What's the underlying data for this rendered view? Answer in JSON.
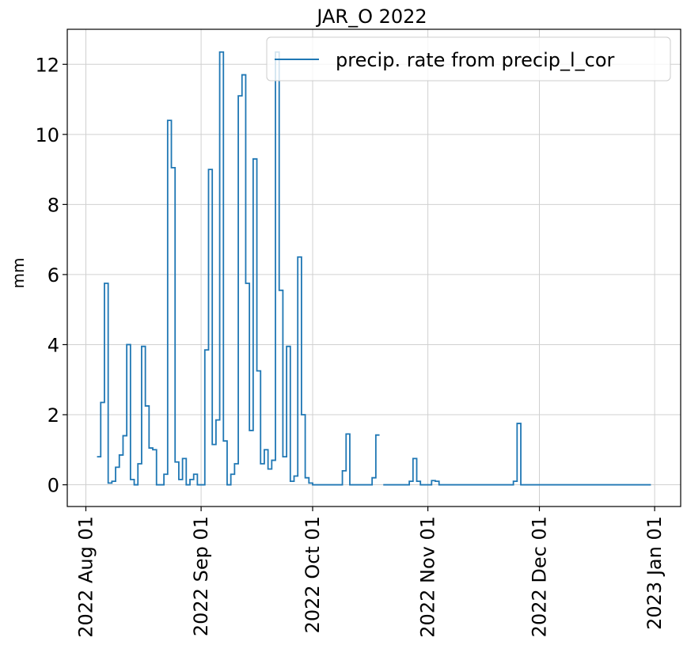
{
  "chart_data": {
    "type": "line",
    "step": true,
    "title": "JAR_O 2022",
    "ylabel": "mm",
    "ylim": [
      -0.62,
      13.0
    ],
    "xlim": [
      "2022-07-27",
      "2023-01-08"
    ],
    "yticks": [
      0,
      2,
      4,
      6,
      8,
      10,
      12
    ],
    "xticks": [
      {
        "date": "2022-08-01",
        "label": "2022 Aug 01"
      },
      {
        "date": "2022-09-01",
        "label": "2022 Sep 01"
      },
      {
        "date": "2022-10-01",
        "label": "2022 Oct 01"
      },
      {
        "date": "2022-11-01",
        "label": "2022 Nov 01"
      },
      {
        "date": "2022-12-01",
        "label": "2022 Dec 01"
      },
      {
        "date": "2023-01-01",
        "label": "2023 Jan 01"
      }
    ],
    "grid": true,
    "legend_position": "top-right",
    "series": [
      {
        "name": "precip. rate from precip_l_cor",
        "color": "#1f77b4",
        "segments": [
          [
            [
              "2022-08-04",
              0.8
            ],
            [
              "2022-08-05",
              2.35
            ],
            [
              "2022-08-06",
              5.75
            ],
            [
              "2022-08-07",
              0.05
            ],
            [
              "2022-08-08",
              0.1
            ],
            [
              "2022-08-09",
              0.5
            ],
            [
              "2022-08-10",
              0.85
            ],
            [
              "2022-08-11",
              1.4
            ],
            [
              "2022-08-12",
              4.0
            ],
            [
              "2022-08-13",
              0.15
            ],
            [
              "2022-08-14",
              0.0
            ],
            [
              "2022-08-15",
              0.6
            ],
            [
              "2022-08-16",
              3.95
            ],
            [
              "2022-08-17",
              2.25
            ],
            [
              "2022-08-18",
              1.05
            ],
            [
              "2022-08-19",
              1.0
            ],
            [
              "2022-08-20",
              0.0
            ],
            [
              "2022-08-21",
              0.0
            ],
            [
              "2022-08-22",
              0.3
            ],
            [
              "2022-08-23",
              10.4
            ],
            [
              "2022-08-24",
              9.05
            ],
            [
              "2022-08-25",
              0.65
            ],
            [
              "2022-08-26",
              0.15
            ],
            [
              "2022-08-27",
              0.75
            ],
            [
              "2022-08-28",
              0.0
            ],
            [
              "2022-08-29",
              0.15
            ],
            [
              "2022-08-30",
              0.3
            ],
            [
              "2022-08-31",
              0.0
            ],
            [
              "2022-09-01",
              0.0
            ],
            [
              "2022-09-02",
              3.85
            ],
            [
              "2022-09-03",
              9.0
            ],
            [
              "2022-09-04",
              1.15
            ],
            [
              "2022-09-05",
              1.85
            ],
            [
              "2022-09-06",
              12.35
            ],
            [
              "2022-09-07",
              1.25
            ],
            [
              "2022-09-08",
              0.0
            ],
            [
              "2022-09-09",
              0.3
            ],
            [
              "2022-09-10",
              0.6
            ],
            [
              "2022-09-11",
              11.1
            ],
            [
              "2022-09-12",
              11.7
            ],
            [
              "2022-09-13",
              5.75
            ],
            [
              "2022-09-14",
              1.55
            ],
            [
              "2022-09-15",
              9.3
            ],
            [
              "2022-09-16",
              3.25
            ],
            [
              "2022-09-17",
              0.6
            ],
            [
              "2022-09-18",
              1.0
            ],
            [
              "2022-09-19",
              0.45
            ],
            [
              "2022-09-20",
              0.7
            ],
            [
              "2022-09-21",
              12.35
            ],
            [
              "2022-09-22",
              5.55
            ],
            [
              "2022-09-23",
              0.8
            ],
            [
              "2022-09-24",
              3.95
            ],
            [
              "2022-09-25",
              0.1
            ],
            [
              "2022-09-26",
              0.25
            ],
            [
              "2022-09-27",
              6.5
            ],
            [
              "2022-09-28",
              2.0
            ],
            [
              "2022-09-29",
              0.2
            ],
            [
              "2022-09-30",
              0.05
            ],
            [
              "2022-10-01",
              0.0
            ],
            [
              "2022-10-02",
              0.0
            ],
            [
              "2022-10-03",
              0.0
            ],
            [
              "2022-10-04",
              0.0
            ],
            [
              "2022-10-05",
              0.0
            ],
            [
              "2022-10-06",
              0.0
            ],
            [
              "2022-10-07",
              0.0
            ],
            [
              "2022-10-08",
              0.0
            ],
            [
              "2022-10-09",
              0.4
            ],
            [
              "2022-10-10",
              1.45
            ],
            [
              "2022-10-11",
              0.0
            ],
            [
              "2022-10-12",
              0.0
            ],
            [
              "2022-10-13",
              0.0
            ],
            [
              "2022-10-14",
              0.0
            ],
            [
              "2022-10-15",
              0.0
            ],
            [
              "2022-10-16",
              0.0
            ],
            [
              "2022-10-17",
              0.2
            ],
            [
              "2022-10-18",
              1.42
            ],
            [
              "2022-10-19",
              1.42
            ]
          ],
          [
            [
              "2022-10-20",
              0.0
            ],
            [
              "2022-10-21",
              0.0
            ],
            [
              "2022-10-22",
              0.0
            ],
            [
              "2022-10-23",
              0.0
            ],
            [
              "2022-10-24",
              0.0
            ],
            [
              "2022-10-25",
              0.0
            ],
            [
              "2022-10-26",
              0.0
            ],
            [
              "2022-10-27",
              0.1
            ],
            [
              "2022-10-28",
              0.75
            ],
            [
              "2022-10-29",
              0.1
            ],
            [
              "2022-10-30",
              0.0
            ],
            [
              "2022-10-31",
              0.0
            ],
            [
              "2022-11-01",
              0.0
            ],
            [
              "2022-11-02",
              0.12
            ],
            [
              "2022-11-03",
              0.1
            ],
            [
              "2022-11-04",
              0.0
            ],
            [
              "2022-11-05",
              0.0
            ],
            [
              "2022-11-06",
              0.0
            ],
            [
              "2022-11-07",
              0.0
            ],
            [
              "2022-11-08",
              0.0
            ],
            [
              "2022-11-09",
              0.0
            ],
            [
              "2022-11-10",
              0.0
            ],
            [
              "2022-11-11",
              0.0
            ],
            [
              "2022-11-12",
              0.0
            ],
            [
              "2022-11-13",
              0.0
            ],
            [
              "2022-11-14",
              0.0
            ],
            [
              "2022-11-15",
              0.0
            ],
            [
              "2022-11-16",
              0.0
            ],
            [
              "2022-11-17",
              0.0
            ],
            [
              "2022-11-18",
              0.0
            ],
            [
              "2022-11-19",
              0.0
            ],
            [
              "2022-11-20",
              0.0
            ],
            [
              "2022-11-21",
              0.0
            ],
            [
              "2022-11-22",
              0.0
            ],
            [
              "2022-11-23",
              0.0
            ],
            [
              "2022-11-24",
              0.1
            ],
            [
              "2022-11-25",
              1.75
            ],
            [
              "2022-11-26",
              0.0
            ],
            [
              "2022-11-27",
              0.0
            ],
            [
              "2022-11-28",
              0.0
            ],
            [
              "2022-11-29",
              0.0
            ],
            [
              "2022-11-30",
              0.0
            ],
            [
              "2022-12-01",
              0.0
            ],
            [
              "2022-12-05",
              0.0
            ],
            [
              "2022-12-10",
              0.0
            ],
            [
              "2022-12-15",
              0.0
            ],
            [
              "2022-12-20",
              0.0
            ],
            [
              "2022-12-25",
              0.0
            ],
            [
              "2022-12-30",
              0.0
            ],
            [
              "2022-12-31",
              0.0
            ]
          ]
        ]
      }
    ]
  }
}
